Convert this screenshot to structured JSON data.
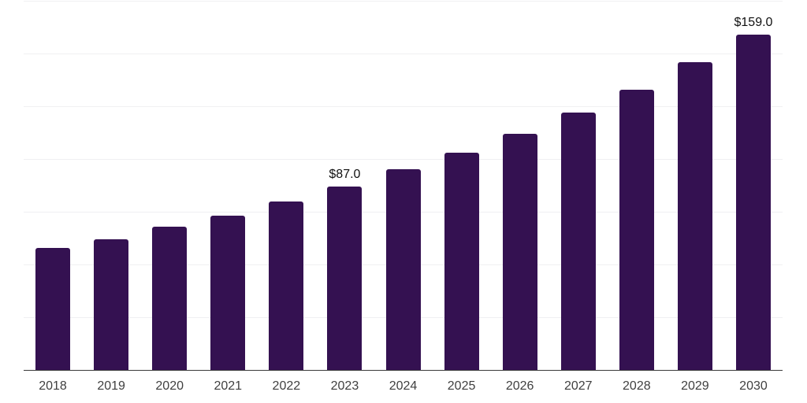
{
  "chart_data": {
    "type": "bar",
    "title": "",
    "xlabel": "",
    "ylabel": "",
    "categories": [
      "2018",
      "2019",
      "2020",
      "2021",
      "2022",
      "2023",
      "2024",
      "2025",
      "2026",
      "2027",
      "2028",
      "2029",
      "2030"
    ],
    "values": [
      58,
      62,
      68,
      73,
      80,
      87,
      95,
      103,
      112,
      122,
      133,
      146,
      159
    ],
    "data_labels": [
      "",
      "",
      "",
      "",
      "",
      "$87.0",
      "",
      "",
      "",
      "",
      "",
      "",
      "$159.0"
    ],
    "ylim": [
      0,
      175
    ],
    "grid": true,
    "gridline_step": 25,
    "legend": false,
    "colors": {
      "bar": "#341151",
      "background": "#ffffff",
      "gridline": "#f0f0f2",
      "axis_line": "#3b3b3b",
      "tick_label": "#3f3f3f",
      "data_label": "#111111"
    }
  }
}
